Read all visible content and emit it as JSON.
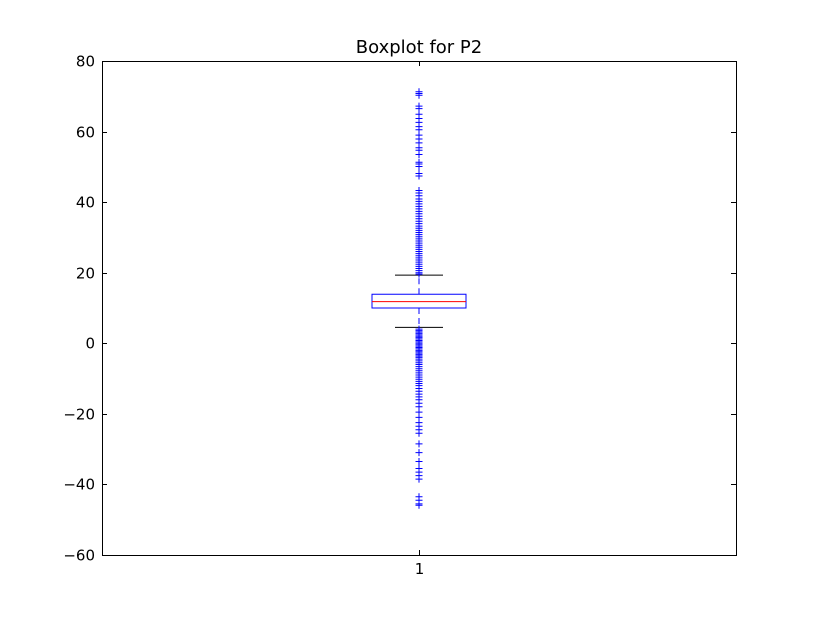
{
  "chart_data": {
    "type": "boxplot",
    "title": "Boxplot for P2",
    "xlabel": "",
    "ylabel": "",
    "ylim": [
      -60,
      80
    ],
    "yticks": [
      -60,
      -40,
      -20,
      0,
      20,
      40,
      60,
      80
    ],
    "categories": [
      "1"
    ],
    "boxes": [
      {
        "category": "1",
        "whisker_low": 4.5,
        "q1": 10.0,
        "median": 11.8,
        "q3": 13.9,
        "whisker_high": 19.3,
        "fliers": [
          71.3,
          70.8,
          70.3,
          67.2,
          66.5,
          64.9,
          63.7,
          62.6,
          61.4,
          60.5,
          59.0,
          57.9,
          56.8,
          55.4,
          54.7,
          53.5,
          51.3,
          50.8,
          50.1,
          48.1,
          47.4,
          43.3,
          42.6,
          41.8,
          40.9,
          40.2,
          39.5,
          38.8,
          38.1,
          37.4,
          36.7,
          36.0,
          35.3,
          34.6,
          33.9,
          33.2,
          32.6,
          32.0,
          31.4,
          30.8,
          30.2,
          29.6,
          29.0,
          28.4,
          27.8,
          27.2,
          26.6,
          26.0,
          25.4,
          24.8,
          24.2,
          23.6,
          23.0,
          22.4,
          21.8,
          21.2,
          20.6,
          20.0,
          19.6,
          4.0,
          3.6,
          3.2,
          2.8,
          2.4,
          2.0,
          1.6,
          1.2,
          0.8,
          0.4,
          0.0,
          -0.4,
          -0.8,
          -1.2,
          -1.6,
          -2.0,
          -2.4,
          -2.8,
          -3.2,
          -3.6,
          -4.0,
          -4.5,
          -5.0,
          -5.5,
          -6.0,
          -6.6,
          -7.2,
          -7.8,
          -8.4,
          -9.0,
          -9.6,
          -10.2,
          -10.8,
          -11.4,
          -12.0,
          -12.8,
          -13.6,
          -14.4,
          -15.2,
          -16.0,
          -17.0,
          -18.0,
          -19.5,
          -21.0,
          -22.5,
          -23.5,
          -24.5,
          -25.5,
          -28.5,
          -31.0,
          -33.5,
          -35.5,
          -36.5,
          -37.5,
          -38.5,
          -43.5,
          -44.5,
          -45.5,
          -45.9
        ]
      }
    ],
    "colors": {
      "box": "#0000ff",
      "median": "#ff0000",
      "whisker": "#0000ff",
      "cap": "#000000",
      "flier": "#0000ff",
      "axes": "#000000"
    },
    "grid": false,
    "legend": "none"
  }
}
